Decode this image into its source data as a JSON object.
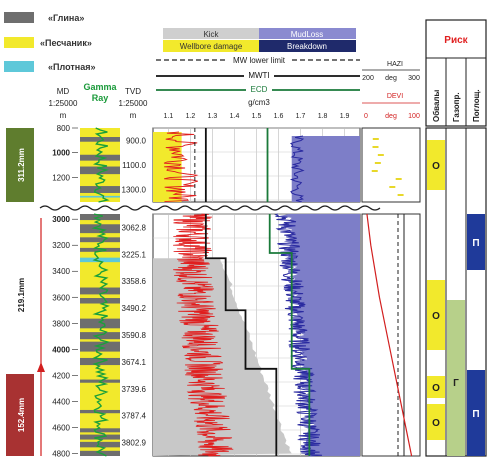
{
  "legend": {
    "lithology": [
      {
        "label": "«Глина»",
        "color": "#6e6e6e"
      },
      {
        "label": "«Песчаник»",
        "color": "#f2e92c"
      },
      {
        "label": "«Плотная»",
        "color": "#5ec8d9"
      }
    ],
    "events": [
      {
        "label": "Kick",
        "color": "#cfcfcf",
        "text_color": "#333333"
      },
      {
        "label": "MudLoss",
        "color": "#8a8ad0",
        "text_color": "#ffffff"
      },
      {
        "label": "Wellbore damage",
        "color": "#f2e92c",
        "text_color": "#333333"
      },
      {
        "label": "Breakdown",
        "color": "#1f2a6b",
        "text_color": "#ffffff"
      }
    ],
    "lines": {
      "mw_lower": "MW lower limit",
      "mwti": "MWTI",
      "ecd": "ECD"
    }
  },
  "headers": {
    "md": {
      "label": "MD",
      "scale": "1:25000",
      "unit": "m"
    },
    "gamma": "Gamma Ray",
    "tvd": {
      "label": "TVD",
      "scale": "1:25000",
      "unit": "m"
    },
    "density_unit": "g/cm3",
    "hazi": {
      "label": "HAZI",
      "unit": "deg",
      "ticks": [
        "200",
        "300"
      ]
    },
    "devi": {
      "label": "DEVI",
      "unit": "deg",
      "ticks": [
        "0",
        "100"
      ]
    }
  },
  "risk": {
    "title": "Риск",
    "columns": [
      "Обвалы",
      "Газопр.",
      "Поглощ."
    ],
    "markers": [
      {
        "col": 0,
        "label": "О"
      },
      {
        "col": 0,
        "label": "О"
      },
      {
        "col": 0,
        "label": "О"
      },
      {
        "col": 0,
        "label": "О"
      },
      {
        "col": 1,
        "label": "Г"
      },
      {
        "col": 2,
        "label": "П"
      },
      {
        "col": 2,
        "label": "П"
      }
    ]
  },
  "casing": [
    "311.2mm",
    "219.1mm",
    "152.4mm"
  ],
  "casing_colors": [
    "#5f7d2e",
    "#ffffff",
    "#a83232"
  ],
  "chart_data": {
    "type": "line",
    "x_axis": {
      "label": "g/cm3",
      "ticks": [
        1.1,
        1.2,
        1.3,
        1.4,
        1.5,
        1.6,
        1.7,
        1.8,
        1.9
      ],
      "range": [
        1.03,
        1.97
      ]
    },
    "upper_section": {
      "md_ticks": [
        "800",
        "1000",
        "1200"
      ],
      "md_range": [
        800,
        1400
      ],
      "tvd_ticks": [
        "900.0",
        "1100.0",
        "1300.0"
      ],
      "ecd_x": 1.55,
      "mwti_x": 1.27,
      "mwlower_x": 1.22,
      "breakdown_x": 1.66
    },
    "lower_section": {
      "md_ticks": [
        "3000",
        "3200",
        "3400",
        "3600",
        "3800",
        "4000",
        "4200",
        "4400",
        "4600",
        "4800"
      ],
      "md_range": [
        2960,
        4820
      ],
      "tvd_ticks": [
        "3062.8",
        "3225.1",
        "3358.6",
        "3490.2",
        "3590.8",
        "3674.1",
        "3739.6",
        "3787.4",
        "3802.9"
      ],
      "mwti_steps": [
        [
          2960,
          1.27
        ],
        [
          3300,
          1.27
        ],
        [
          3300,
          1.36
        ],
        [
          3700,
          1.36
        ],
        [
          3700,
          1.45
        ],
        [
          4150,
          1.45
        ],
        [
          4150,
          1.59
        ],
        [
          4820,
          1.59
        ]
      ],
      "ecd_steps": [
        [
          2960,
          1.56
        ],
        [
          3260,
          1.56
        ],
        [
          3260,
          1.66
        ],
        [
          4150,
          1.66
        ],
        [
          4150,
          1.74
        ],
        [
          4820,
          1.74
        ]
      ],
      "devi": [
        [
          2960,
          2
        ],
        [
          3200,
          10
        ],
        [
          3600,
          28
        ],
        [
          4000,
          50
        ],
        [
          4400,
          72
        ],
        [
          4820,
          95
        ]
      ]
    }
  }
}
